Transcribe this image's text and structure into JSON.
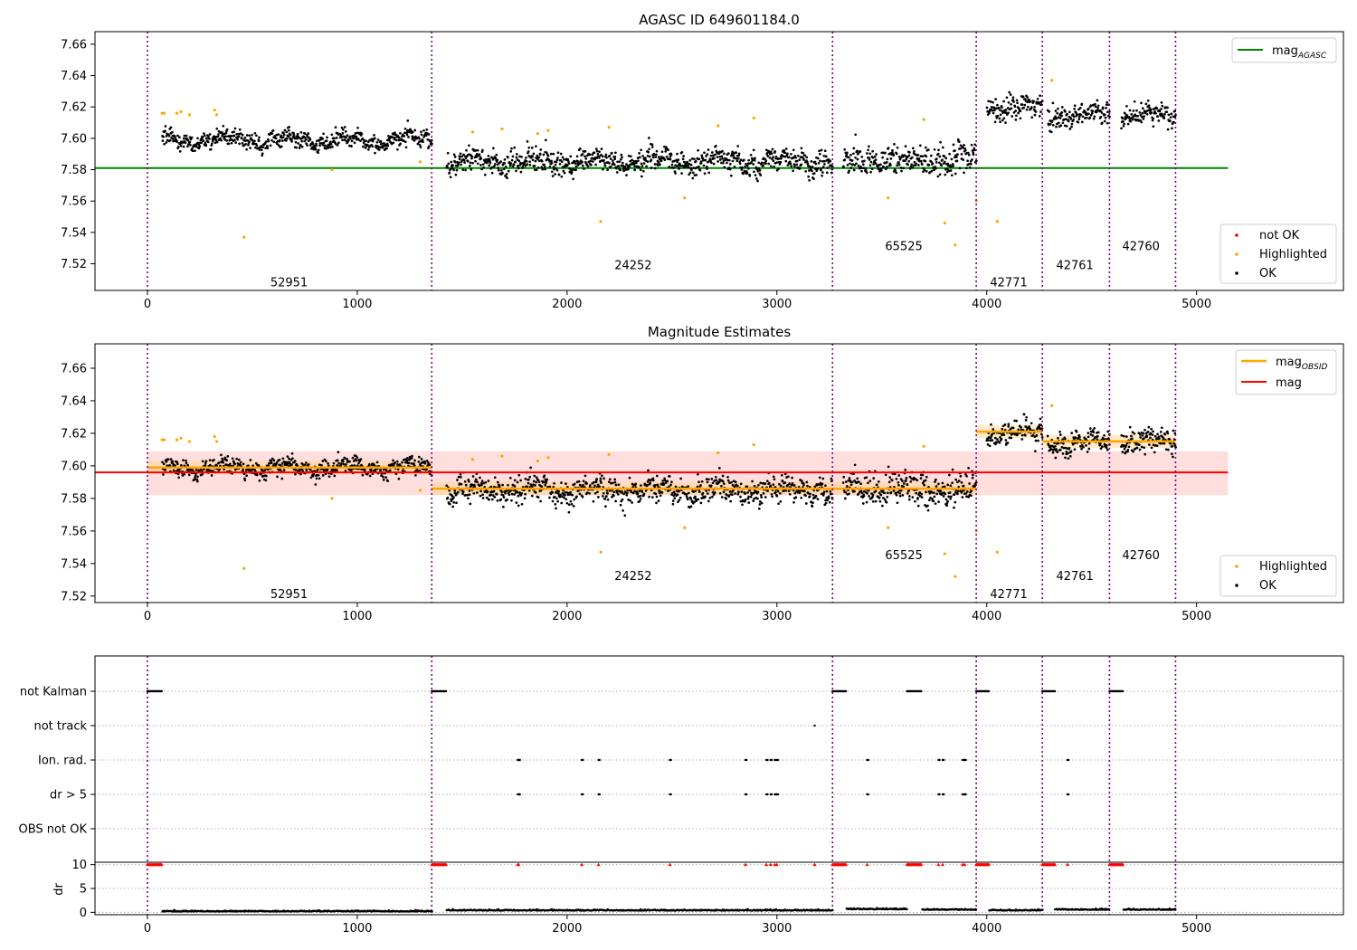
{
  "chart_data": [
    {
      "type": "scatter",
      "title": "AGASC ID 649601184.0",
      "xlim": [
        -250,
        5700
      ],
      "ylim": [
        7.503,
        7.668
      ],
      "xticks": [
        0,
        1000,
        2000,
        3000,
        4000,
        5000
      ],
      "yticks": [
        7.52,
        7.54,
        7.56,
        7.58,
        7.6,
        7.62,
        7.64,
        7.66
      ],
      "reference_line": {
        "name": "mag",
        "subscript": "AGASC",
        "value": 7.581,
        "x_range": [
          -250,
          5150
        ],
        "color": "#008000"
      },
      "obsid_boundaries": [
        0,
        1355,
        3265,
        3950,
        4265,
        4585,
        4900
      ],
      "obsid_labels": [
        {
          "x": 675,
          "y": 7.508,
          "text": "52951"
        },
        {
          "x": 2315,
          "y": 7.519,
          "text": "24252"
        },
        {
          "x": 3605,
          "y": 7.531,
          "text": "65525"
        },
        {
          "x": 4105,
          "y": 7.508,
          "text": "42771"
        },
        {
          "x": 4420,
          "y": 7.519,
          "text": "42761"
        },
        {
          "x": 4735,
          "y": 7.531,
          "text": "42760"
        }
      ],
      "legend_upper": {
        "position": "top-right",
        "entries": [
          {
            "label": "mag",
            "subscript": "AGASC",
            "kind": "line",
            "color": "#008000"
          }
        ]
      },
      "legend_lower": {
        "position": "bottom-right",
        "entries": [
          {
            "label": "not OK",
            "kind": "dot",
            "color": "#ff0000"
          },
          {
            "label": "Highlighted",
            "kind": "dot",
            "color": "#ffa500"
          },
          {
            "label": "OK",
            "kind": "dot",
            "color": "#000000"
          }
        ]
      },
      "segments": [
        {
          "obsid": "52951",
          "x_range": [
            70,
            1355
          ],
          "mean": 7.599,
          "spread": 0.0045
        },
        {
          "obsid": "24252",
          "x_range": [
            1425,
            3265
          ],
          "mean": 7.585,
          "spread": 0.0065
        },
        {
          "obsid": "65525",
          "x_range": [
            3315,
            3950
          ],
          "mean": 7.586,
          "spread": 0.008
        },
        {
          "obsid": "42771",
          "x_range": [
            4000,
            4265
          ],
          "mean": 7.62,
          "spread": 0.006
        },
        {
          "obsid": "42761",
          "x_range": [
            4290,
            4585
          ],
          "mean": 7.615,
          "spread": 0.0055
        },
        {
          "obsid": "42760",
          "x_range": [
            4640,
            4900
          ],
          "mean": 7.615,
          "spread": 0.0055
        }
      ],
      "highlighted_points": [
        [
          70,
          7.616
        ],
        [
          80,
          7.616
        ],
        [
          140,
          7.616
        ],
        [
          160,
          7.617
        ],
        [
          200,
          7.615
        ],
        [
          320,
          7.618
        ],
        [
          330,
          7.615
        ],
        [
          460,
          7.537
        ],
        [
          880,
          7.58
        ],
        [
          1300,
          7.585
        ],
        [
          1550,
          7.604
        ],
        [
          1690,
          7.606
        ],
        [
          1860,
          7.603
        ],
        [
          1910,
          7.605
        ],
        [
          2160,
          7.547
        ],
        [
          2200,
          7.607
        ],
        [
          2560,
          7.562
        ],
        [
          2720,
          7.608
        ],
        [
          2890,
          7.613
        ],
        [
          3530,
          7.562
        ],
        [
          3700,
          7.612
        ],
        [
          3800,
          7.546
        ],
        [
          3850,
          7.532
        ],
        [
          3950,
          7.56
        ],
        [
          4050,
          7.547
        ],
        [
          4310,
          7.637
        ]
      ]
    },
    {
      "type": "scatter",
      "title": "Magnitude Estimates",
      "xlim": [
        -250,
        5700
      ],
      "ylim": [
        7.516,
        7.675
      ],
      "xticks": [
        0,
        1000,
        2000,
        3000,
        4000,
        5000
      ],
      "yticks": [
        7.52,
        7.54,
        7.56,
        7.58,
        7.6,
        7.62,
        7.64,
        7.66
      ],
      "mag_line": {
        "name": "mag",
        "value": 7.596,
        "band": [
          7.582,
          7.609
        ],
        "x_range": [
          -250,
          5150
        ],
        "color": "#ff0000"
      },
      "mag_obsid": [
        {
          "x_range": [
            0,
            1355
          ],
          "value": 7.599
        },
        {
          "x_range": [
            1355,
            3265
          ],
          "value": 7.586
        },
        {
          "x_range": [
            3265,
            3950
          ],
          "value": 7.586
        },
        {
          "x_range": [
            3950,
            4265
          ],
          "value": 7.621
        },
        {
          "x_range": [
            4265,
            4585
          ],
          "value": 7.615
        },
        {
          "x_range": [
            4585,
            4900
          ],
          "value": 7.615
        }
      ],
      "obsid_labels": [
        {
          "x": 675,
          "y": 7.521,
          "text": "52951"
        },
        {
          "x": 2315,
          "y": 7.532,
          "text": "24252"
        },
        {
          "x": 3605,
          "y": 7.545,
          "text": "65525"
        },
        {
          "x": 4105,
          "y": 7.521,
          "text": "42771"
        },
        {
          "x": 4420,
          "y": 7.532,
          "text": "42761"
        },
        {
          "x": 4735,
          "y": 7.545,
          "text": "42760"
        }
      ],
      "legend_upper": {
        "position": "top-right",
        "entries": [
          {
            "label": "mag",
            "subscript": "OBSID",
            "kind": "line",
            "color": "#ffa500"
          },
          {
            "label": "mag",
            "subscript": "",
            "kind": "line",
            "color": "#ff0000"
          }
        ]
      },
      "legend_lower": {
        "position": "bottom-right",
        "entries": [
          {
            "label": "Highlighted",
            "kind": "dot",
            "color": "#ffa500"
          },
          {
            "label": "OK",
            "kind": "dot",
            "color": "#000000"
          }
        ]
      }
    },
    {
      "type": "scatter",
      "title": "",
      "xlim": [
        -250,
        5700
      ],
      "xticks": [
        0,
        1000,
        2000,
        3000,
        4000,
        5000
      ],
      "flag_rows": [
        "not Kalman",
        "not track",
        "Ion. rad.",
        "dr > 5",
        "OBS not OK"
      ],
      "flags": {
        "not Kalman": [
          [
            0,
            70
          ],
          [
            1355,
            1425
          ],
          [
            3265,
            3330
          ],
          [
            3620,
            3690
          ],
          [
            3950,
            4010
          ],
          [
            4265,
            4325
          ],
          [
            4585,
            4650
          ]
        ],
        "not track": [
          3180
        ],
        "Ion. rad.": [
          1765,
          1770,
          2070,
          2150,
          2490,
          2850,
          2950,
          2970,
          2990,
          3000,
          3430,
          3770,
          3790,
          3885,
          3895,
          4385
        ],
        "dr > 5": [
          1765,
          1770,
          2070,
          2150,
          2490,
          2850,
          2950,
          2970,
          2990,
          3000,
          3430,
          3770,
          3790,
          3885,
          3895,
          4385
        ],
        "OBS not OK": []
      },
      "dr_ylabel": "dr",
      "dr_yticks": [
        0,
        5,
        10
      ],
      "dr_ylim": [
        -0.5,
        10.5
      ],
      "dr_high_value": 10,
      "dr_high_clusters": [
        [
          0,
          70
        ],
        [
          1355,
          1425
        ],
        [
          1765,
          1772
        ],
        [
          3265,
          3330
        ],
        [
          3620,
          3690
        ],
        [
          3950,
          4010
        ],
        [
          4265,
          4325
        ],
        [
          4585,
          4650
        ]
      ],
      "dr_high_singles": [
        2070,
        2150,
        2490,
        2850,
        2950,
        2970,
        2990,
        3000,
        3180,
        3430,
        3770,
        3790,
        3885,
        3895,
        4385
      ],
      "dr_low_segments": [
        {
          "x_range": [
            70,
            1355
          ],
          "base": 0.15
        },
        {
          "x_range": [
            1425,
            3265
          ],
          "base": 0.35
        },
        {
          "x_range": [
            3330,
            3620
          ],
          "base": 0.6
        },
        {
          "x_range": [
            3690,
            3950
          ],
          "base": 0.5
        },
        {
          "x_range": [
            4010,
            4265
          ],
          "base": 0.35
        },
        {
          "x_range": [
            4325,
            4585
          ],
          "base": 0.5
        },
        {
          "x_range": [
            4650,
            4900
          ],
          "base": 0.5
        }
      ]
    }
  ]
}
